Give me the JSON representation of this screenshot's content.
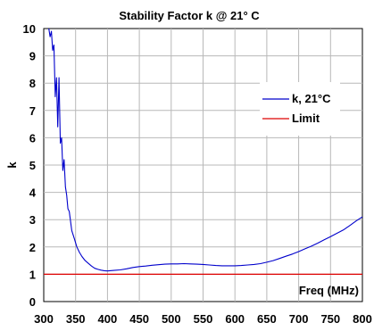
{
  "chart_data": {
    "type": "line",
    "title": "Stability Factor k @ 21° C",
    "xlabel": "Freq (MHz)",
    "ylabel": "k",
    "xlim": [
      300,
      800
    ],
    "ylim": [
      0,
      10
    ],
    "x_ticks": [
      "300",
      "350",
      "400",
      "450",
      "500",
      "550",
      "600",
      "650",
      "700",
      "750",
      "800"
    ],
    "y_ticks": [
      "0",
      "1",
      "2",
      "3",
      "4",
      "5",
      "6",
      "7",
      "8",
      "9",
      "10"
    ],
    "grid": true,
    "legend_position": "right",
    "series": [
      {
        "name": "k, 21°C",
        "color": "#0000cc",
        "x": [
          308,
          310,
          312,
          314,
          316,
          318,
          320,
          322,
          324,
          326,
          328,
          330,
          332,
          334,
          336,
          338,
          340,
          344,
          348,
          352,
          356,
          360,
          365,
          370,
          375,
          380,
          385,
          390,
          395,
          400,
          410,
          420,
          430,
          440,
          450,
          460,
          470,
          480,
          490,
          500,
          510,
          520,
          530,
          540,
          550,
          560,
          570,
          580,
          590,
          600,
          610,
          620,
          630,
          640,
          650,
          660,
          670,
          680,
          690,
          700,
          710,
          720,
          730,
          740,
          750,
          760,
          770,
          780,
          790,
          800
        ],
        "y": [
          10.0,
          9.7,
          9.9,
          9.2,
          9.4,
          7.5,
          8.2,
          6.4,
          8.2,
          5.8,
          6.0,
          4.8,
          5.2,
          4.2,
          3.9,
          3.4,
          3.3,
          2.6,
          2.3,
          2.0,
          1.8,
          1.65,
          1.5,
          1.4,
          1.3,
          1.22,
          1.18,
          1.15,
          1.13,
          1.12,
          1.14,
          1.16,
          1.2,
          1.25,
          1.28,
          1.3,
          1.33,
          1.35,
          1.37,
          1.38,
          1.38,
          1.39,
          1.38,
          1.37,
          1.36,
          1.34,
          1.32,
          1.31,
          1.31,
          1.31,
          1.32,
          1.34,
          1.36,
          1.39,
          1.44,
          1.5,
          1.58,
          1.66,
          1.74,
          1.83,
          1.93,
          2.03,
          2.14,
          2.26,
          2.38,
          2.5,
          2.62,
          2.78,
          2.95,
          3.1
        ]
      },
      {
        "name": "Limit",
        "color": "#dd0000",
        "x": [
          300,
          800
        ],
        "y": [
          1,
          1
        ]
      }
    ]
  }
}
